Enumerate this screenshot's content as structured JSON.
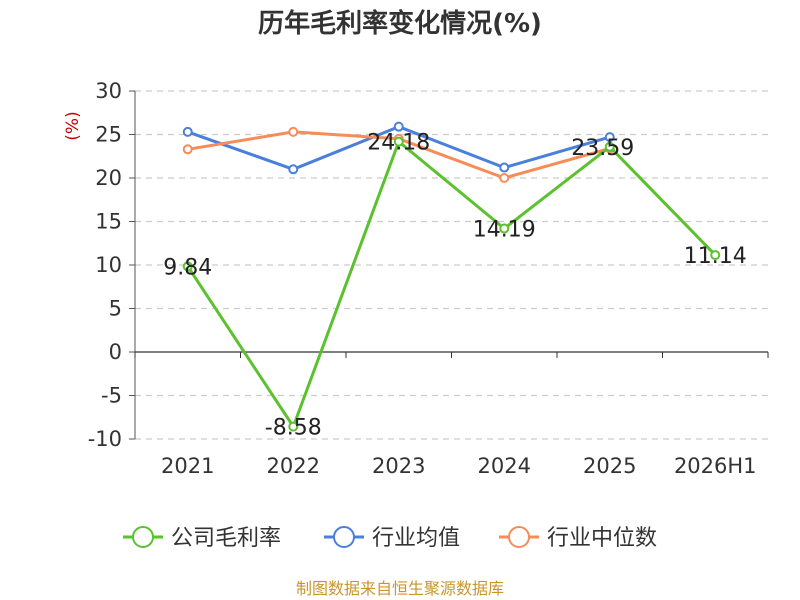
{
  "chart_data": {
    "type": "line",
    "title": "历年毛利率变化情况(%)",
    "ylabel": "(%)",
    "xlabel": "",
    "categories": [
      "2021",
      "2022",
      "2023",
      "2024",
      "2025",
      "2026H1"
    ],
    "ylim": [
      -10,
      30
    ],
    "yticks": [
      30,
      25,
      20,
      15,
      10,
      5,
      0,
      -5,
      -10
    ],
    "grid": true,
    "legend_position": "bottom",
    "series": [
      {
        "name": "公司毛利率",
        "color": "#5bc12e",
        "values": [
          9.84,
          -8.58,
          24.18,
          14.19,
          23.59,
          11.14
        ],
        "data_labels": [
          "9.84",
          "-8.58",
          "24.18",
          "14.19",
          "23.59",
          "11.14"
        ]
      },
      {
        "name": "行业均值",
        "color": "#4a7fdc",
        "values": [
          25.3,
          21.0,
          25.9,
          21.2,
          24.7,
          null
        ]
      },
      {
        "name": "行业中位数",
        "color": "#f78c58",
        "values": [
          23.3,
          25.3,
          24.5,
          20.0,
          23.4,
          null
        ]
      }
    ]
  },
  "source_note": "制图数据来自恒生聚源数据库"
}
